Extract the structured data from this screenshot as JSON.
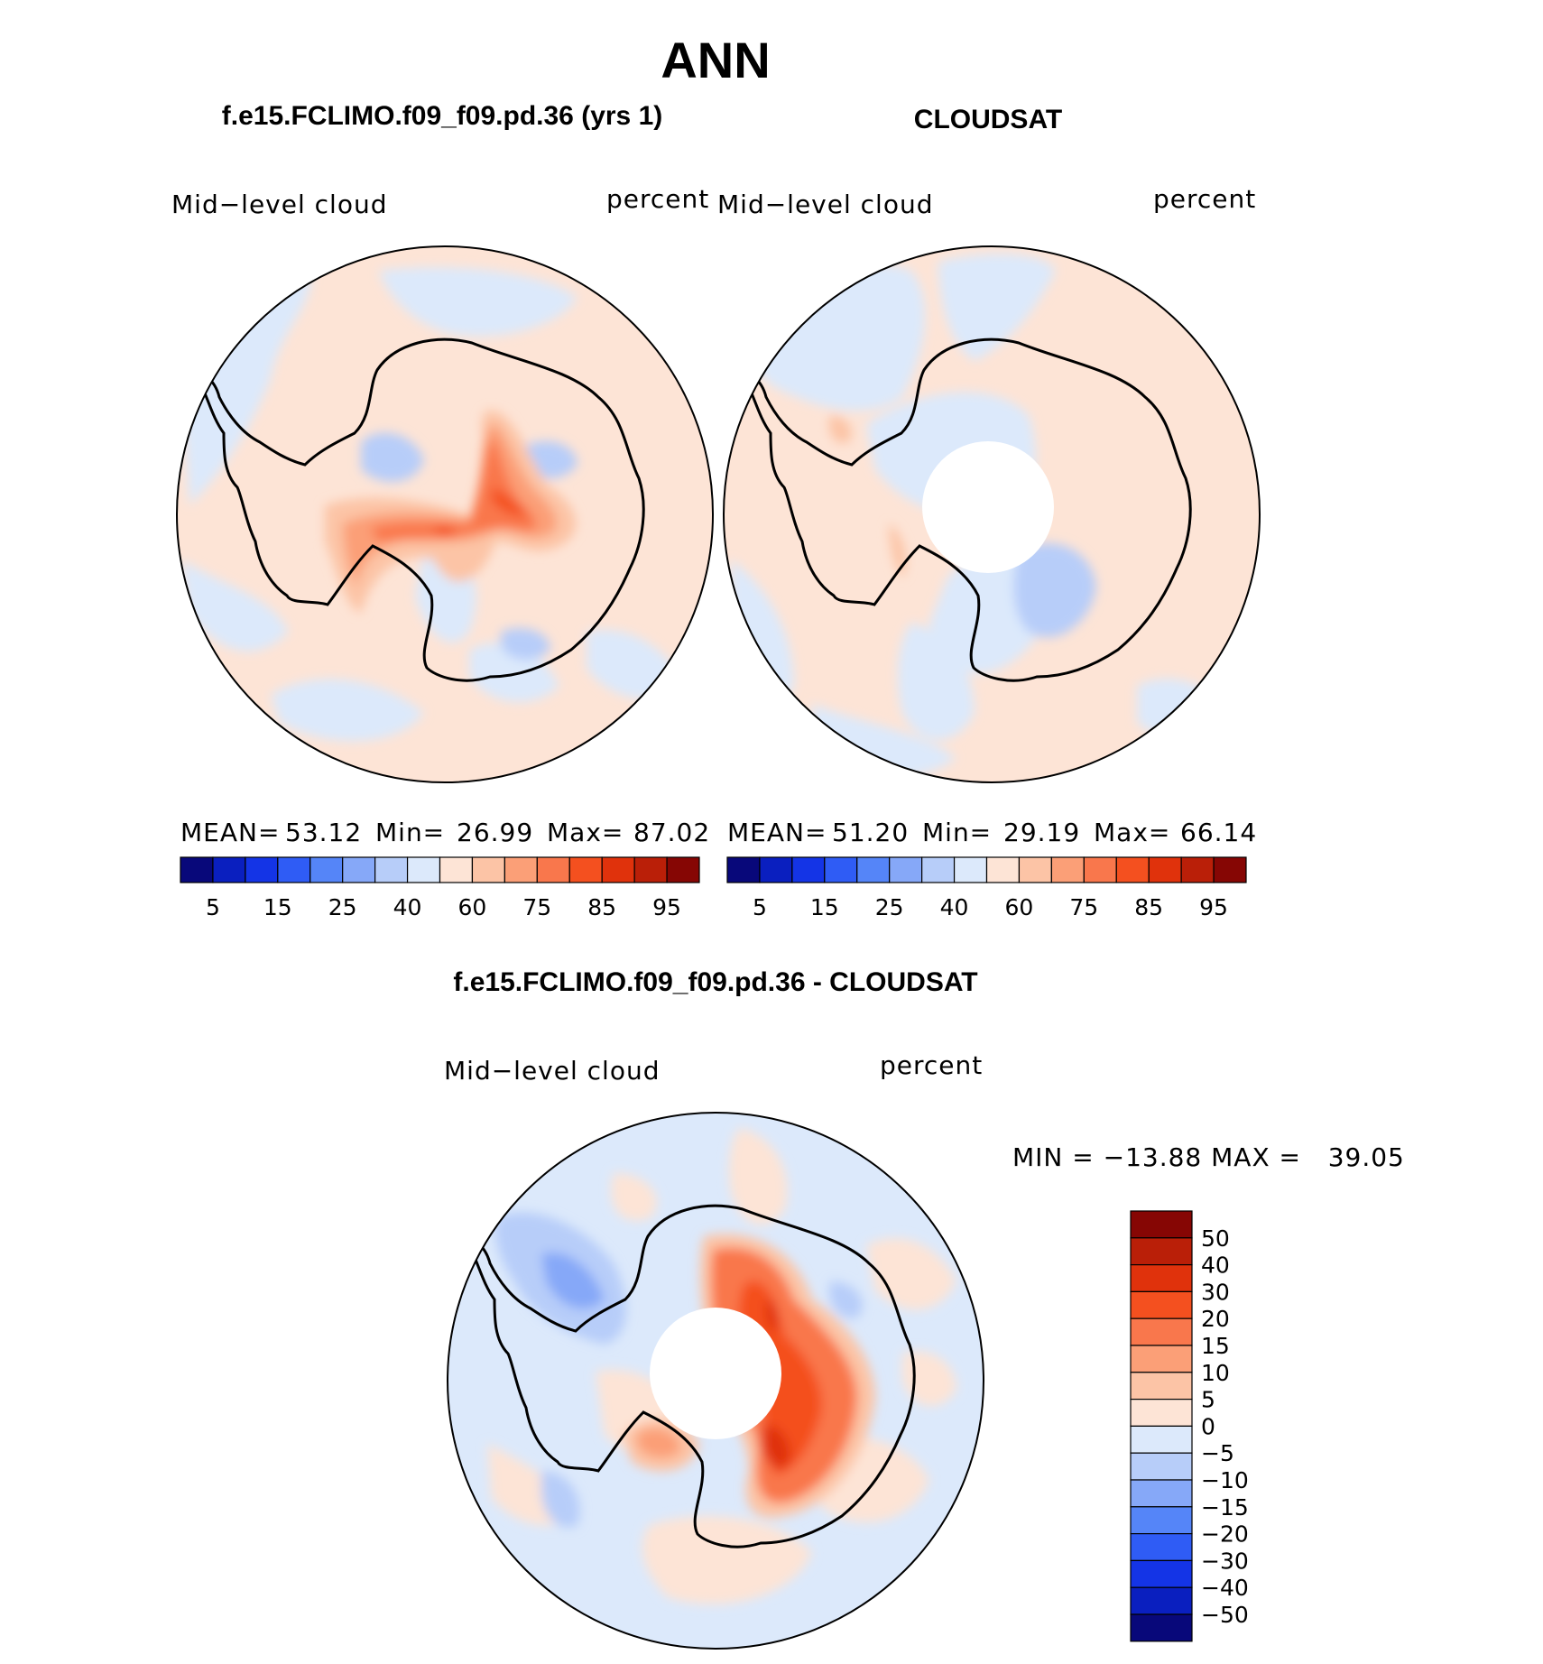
{
  "main_title": "ANN",
  "colors": {
    "seq_palette": [
      "#08087a",
      "#0a1fbf",
      "#1434e6",
      "#2f5cf5",
      "#5585f8",
      "#86a8f8",
      "#b7cdf9",
      "#dce9fb",
      "#fde4d6",
      "#fcc4a6",
      "#fb9f77",
      "#f9774c",
      "#f4501f",
      "#e0320c",
      "#ba1f08",
      "#860604"
    ],
    "diff_palette_top_to_bottom": [
      "#860604",
      "#ba1f08",
      "#e0320c",
      "#f4501f",
      "#f9774c",
      "#fb9f77",
      "#fcc4a6",
      "#fde4d6",
      "#dce9fb",
      "#b7cdf9",
      "#86a8f8",
      "#5585f8",
      "#2f5cf5",
      "#1434e6",
      "#0a1fbf",
      "#08087a"
    ],
    "land_outline": "#000000"
  },
  "panels": {
    "model": {
      "title": "f.e15.FCLIMO.f09_f09.pd.36 (yrs 1)",
      "var_label": "Mid−level cloud",
      "units": "percent",
      "stats": {
        "mean_label": "MEAN=",
        "mean": "53.12",
        "min_label": "Min=",
        "min": "26.99",
        "max_label": "Max=",
        "max": "87.02"
      },
      "colorbar_ticks": [
        "5",
        "15",
        "25",
        "40",
        "60",
        "75",
        "85",
        "95"
      ]
    },
    "obs": {
      "title": "CLOUDSAT",
      "var_label": "Mid−level cloud",
      "units": "percent",
      "stats": {
        "mean_label": "MEAN=",
        "mean": "51.20",
        "min_label": "Min=",
        "min": "29.19",
        "max_label": "Max=",
        "max": "66.14"
      },
      "colorbar_ticks": [
        "5",
        "15",
        "25",
        "40",
        "60",
        "75",
        "85",
        "95"
      ]
    },
    "diff": {
      "title": "f.e15.FCLIMO.f09_f09.pd.36 - CLOUDSAT",
      "var_label": "Mid−level cloud",
      "units": "percent",
      "minmax": "MIN = −13.88 MAX =   39.05",
      "colorbar_ticks": [
        "50",
        "40",
        "30",
        "20",
        "15",
        "10",
        "5",
        "0",
        "−5",
        "−10",
        "−15",
        "−20",
        "−30",
        "−40",
        "−50"
      ]
    }
  }
}
